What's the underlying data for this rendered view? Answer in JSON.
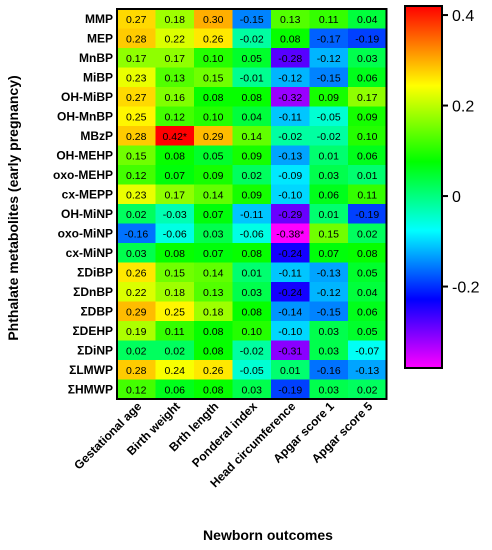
{
  "chart_data": {
    "type": "heatmap",
    "xlabel": "Newborn outcomes",
    "ylabel": "Phthalate metabolites (early pregnancy)",
    "columns": [
      "Gestational age",
      "Birth weight",
      "Brth length",
      "Ponderal index",
      "Head circumference",
      "Apgar score 1",
      "Apgar score 5"
    ],
    "rows": [
      "MMP",
      "MEP",
      "MnBP",
      "MiBP",
      "OH-MiBP",
      "OH-MnBP",
      "MBzP",
      "OH-MEHP",
      "oxo-MEHP",
      "cx-MEPP",
      "OH-MiNP",
      "oxo-MiNP",
      "cx-MiNP",
      "ΣDiBP",
      "ΣDnBP",
      "ΣDBP",
      "ΣDEHP",
      "ΣDiNP",
      "ΣLMWP",
      "ΣHMWP"
    ],
    "values": [
      [
        0.27,
        0.18,
        0.3,
        -0.15,
        0.13,
        0.11,
        0.04
      ],
      [
        0.28,
        0.22,
        0.26,
        -0.02,
        0.08,
        -0.17,
        -0.19
      ],
      [
        0.17,
        0.17,
        0.1,
        0.05,
        -0.28,
        -0.12,
        0.03
      ],
      [
        0.23,
        0.13,
        0.15,
        -0.01,
        -0.12,
        -0.15,
        0.06
      ],
      [
        0.27,
        0.16,
        0.08,
        0.08,
        -0.32,
        0.09,
        0.17
      ],
      [
        0.25,
        0.12,
        0.1,
        0.04,
        -0.11,
        -0.05,
        0.09
      ],
      [
        0.28,
        0.42,
        0.29,
        0.14,
        -0.02,
        -0.02,
        0.1
      ],
      [
        0.15,
        0.08,
        0.05,
        0.09,
        -0.13,
        0.01,
        0.06
      ],
      [
        0.12,
        0.07,
        0.09,
        0.02,
        -0.09,
        0.03,
        0.01
      ],
      [
        0.23,
        0.17,
        0.14,
        0.09,
        -0.1,
        0.06,
        0.11
      ],
      [
        0.02,
        -0.03,
        0.07,
        -0.11,
        -0.29,
        0.01,
        -0.19
      ],
      [
        -0.16,
        -0.06,
        0.03,
        -0.06,
        -0.38,
        0.15,
        0.02
      ],
      [
        0.03,
        0.08,
        0.07,
        0.08,
        -0.24,
        0.07,
        0.08
      ],
      [
        0.26,
        0.15,
        0.14,
        0.01,
        -0.11,
        -0.13,
        0.05
      ],
      [
        0.22,
        0.18,
        0.13,
        0.03,
        -0.24,
        -0.12,
        0.04
      ],
      [
        0.29,
        0.25,
        0.18,
        0.08,
        -0.14,
        -0.15,
        0.06
      ],
      [
        0.19,
        0.11,
        0.08,
        0.1,
        -0.1,
        0.03,
        0.05
      ],
      [
        0.02,
        0.02,
        0.08,
        -0.02,
        -0.31,
        0.03,
        -0.07
      ],
      [
        0.28,
        0.24,
        0.26,
        -0.05,
        0.01,
        -0.16,
        -0.13
      ],
      [
        0.12,
        0.06,
        0.08,
        0.03,
        -0.19,
        0.03,
        0.02
      ]
    ],
    "significant": [
      {
        "row": "MBzP",
        "column": "Birth weight",
        "marker": "*"
      },
      {
        "row": "oxo-MiNP",
        "column": "Head circumference",
        "marker": "*"
      }
    ],
    "colorbar": {
      "min": -0.38,
      "max": 0.42,
      "ticks": [
        0.4,
        0.2,
        0,
        -0.2
      ],
      "tick_labels": [
        "0.4",
        "0.2",
        "0",
        "-0.2"
      ],
      "colormap": "rainbow (magenta-blue-cyan-green-yellow-red)"
    }
  }
}
